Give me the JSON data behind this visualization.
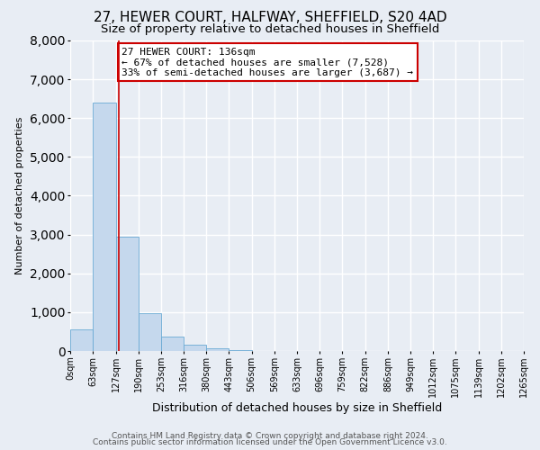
{
  "title": "27, HEWER COURT, HALFWAY, SHEFFIELD, S20 4AD",
  "subtitle": "Size of property relative to detached houses in Sheffield",
  "xlabel": "Distribution of detached houses by size in Sheffield",
  "ylabel": "Number of detached properties",
  "bar_edges": [
    0,
    63,
    127,
    190,
    253,
    316,
    380,
    443,
    506,
    569,
    633,
    696,
    759,
    822,
    886,
    949,
    1012,
    1075,
    1139,
    1202,
    1265
  ],
  "bar_heights": [
    550,
    6400,
    2950,
    980,
    380,
    160,
    80,
    30,
    0,
    0,
    0,
    0,
    0,
    0,
    0,
    0,
    0,
    0,
    0,
    0
  ],
  "bar_color": "#c5d8ed",
  "bar_edge_color": "#6aaad4",
  "property_line_x": 136,
  "ylim": [
    0,
    8000
  ],
  "yticks": [
    0,
    1000,
    2000,
    3000,
    4000,
    5000,
    6000,
    7000,
    8000
  ],
  "annotation_title": "27 HEWER COURT: 136sqm",
  "annotation_line1": "← 67% of detached houses are smaller (7,528)",
  "annotation_line2": "33% of semi-detached houses are larger (3,687) →",
  "annotation_box_facecolor": "#ffffff",
  "annotation_box_edgecolor": "#cc0000",
  "tick_labels": [
    "0sqm",
    "63sqm",
    "127sqm",
    "190sqm",
    "253sqm",
    "316sqm",
    "380sqm",
    "443sqm",
    "506sqm",
    "569sqm",
    "633sqm",
    "696sqm",
    "759sqm",
    "822sqm",
    "886sqm",
    "949sqm",
    "1012sqm",
    "1075sqm",
    "1139sqm",
    "1202sqm",
    "1265sqm"
  ],
  "footer_line1": "Contains HM Land Registry data © Crown copyright and database right 2024.",
  "footer_line2": "Contains public sector information licensed under the Open Government Licence v3.0.",
  "background_color": "#e8edf4",
  "grid_color": "#ffffff",
  "red_line_color": "#cc0000",
  "title_fontsize": 11,
  "subtitle_fontsize": 9.5,
  "ylabel_fontsize": 8,
  "xlabel_fontsize": 9,
  "tick_fontsize": 7,
  "annot_fontsize": 8,
  "footer_fontsize": 6.5
}
